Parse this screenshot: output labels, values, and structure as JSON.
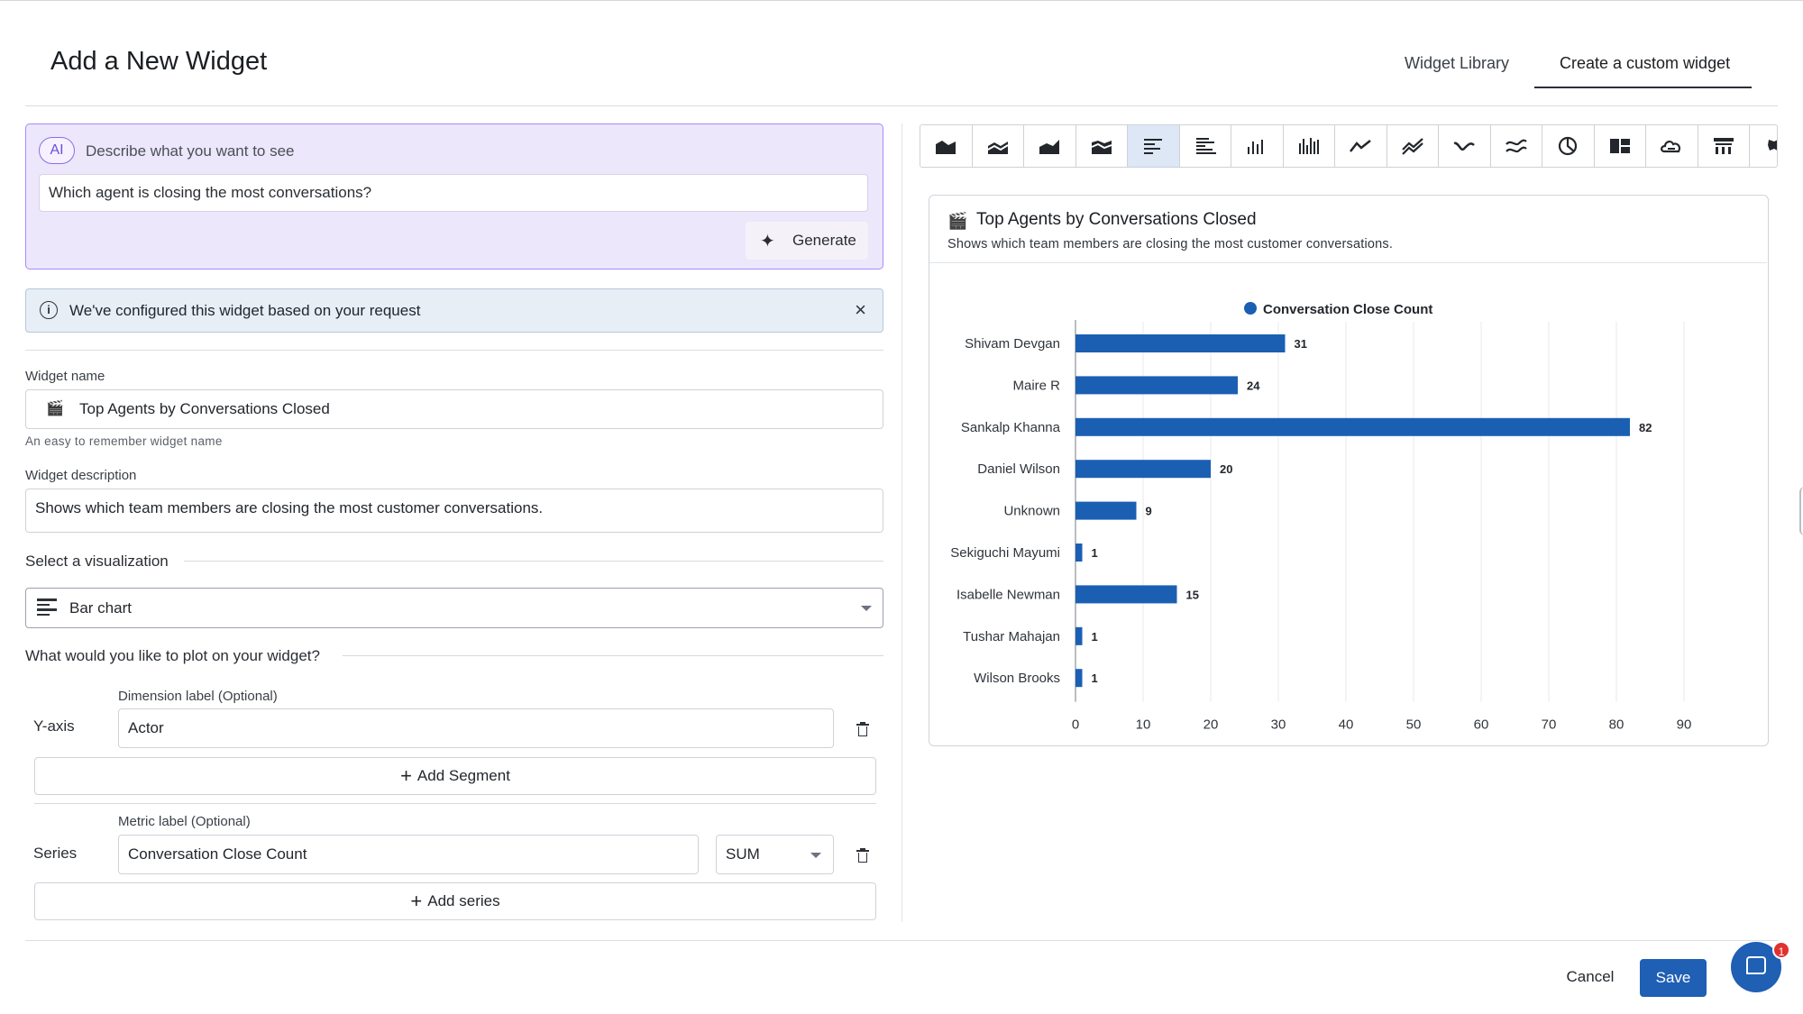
{
  "header": {
    "title": "Add a New Widget",
    "tabs": [
      {
        "label": "Widget Library",
        "active": false
      },
      {
        "label": "Create a custom widget",
        "active": true
      }
    ]
  },
  "ai": {
    "badge": "AI",
    "prompt_label": "Describe what you want to see",
    "query": "Which agent is closing the most conversations?",
    "generate_label": "Generate"
  },
  "notice": {
    "text": "We've configured this widget based on your request"
  },
  "form": {
    "name_label": "Widget name",
    "name_value": "Top Agents by Conversations Closed",
    "name_hint": "An easy to remember widget name",
    "description_label": "Widget description",
    "description_value": "Shows which team members are closing the most customer conversations.",
    "viz_section": "Select a visualization",
    "viz_selected": "Bar chart",
    "plot_section": "What would you like to plot on your widget?",
    "yaxis_label": "Y-axis",
    "dimension_label": "Dimension label (Optional)",
    "dimension_value": "Actor",
    "add_segment": "Add Segment",
    "series_label": "Series",
    "metric_label": "Metric label (Optional)",
    "metric_value": "Conversation Close Count",
    "aggregation": "SUM",
    "add_series": "Add series"
  },
  "viz_toolbar": [
    "area-chart-icon",
    "stacked-area-icon",
    "area-chart-alt-icon",
    "stacked-area-alt-icon",
    "horizontal-bar-icon",
    "stacked-horizontal-bar-icon",
    "column-chart-icon",
    "stacked-column-icon",
    "line-chart-icon",
    "multi-line-icon",
    "spline-icon",
    "multi-spline-icon",
    "pie-chart-icon",
    "treemap-icon",
    "cloud-icon",
    "table-icon",
    "map-icon"
  ],
  "preview": {
    "title": "Top Agents by Conversations Closed",
    "subtitle": "Shows which team members are closing the most customer conversations."
  },
  "chart_data": {
    "type": "bar",
    "orientation": "horizontal",
    "categories": [
      "Shivam Devgan",
      "Maire R",
      "Sankalp Khanna",
      "Daniel Wilson",
      "Unknown",
      "Sekiguchi Mayumi",
      "Isabelle Newman",
      "Tushar Mahajan",
      "Wilson Brooks"
    ],
    "series": [
      {
        "name": "Conversation Close Count",
        "values": [
          31,
          24,
          82,
          20,
          9,
          1,
          15,
          1,
          1
        ],
        "color": "#1b5fb3"
      }
    ],
    "xlim": [
      0,
      90
    ],
    "xticks": [
      0,
      10,
      20,
      30,
      40,
      50,
      60,
      70,
      80,
      90
    ],
    "grid": true,
    "legend": "top-center",
    "data_labels": true
  },
  "footer": {
    "cancel_label": "Cancel",
    "save_label": "Save",
    "chat_badge": "1"
  },
  "colors": {
    "accent": "#1f5fb4",
    "ai_bg": "#ece7fb",
    "ai_border": "#a78bfa",
    "notice_bg": "#e8eef6",
    "active_tool": "#dde7f6"
  }
}
